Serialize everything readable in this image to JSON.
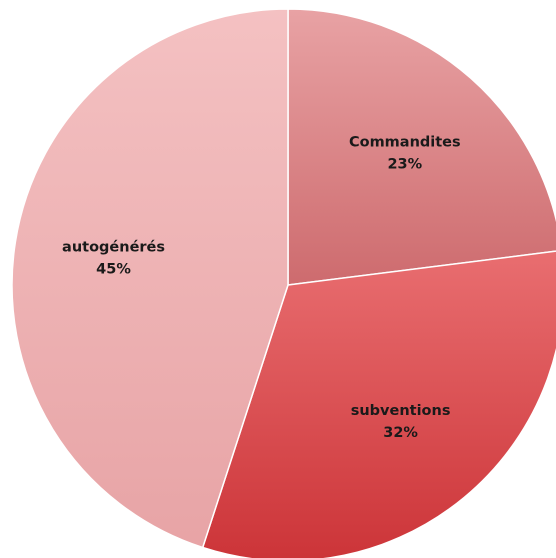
{
  "chart_data": {
    "type": "pie",
    "start_angle_deg": 0,
    "direction": "clockwise",
    "slices": [
      {
        "label": "Commandites",
        "percent_label": "23%",
        "value": 23,
        "colors": {
          "light": "#e8a2a4",
          "dark": "#b33438"
        }
      },
      {
        "label": "subventions",
        "percent_label": "32%",
        "value": 32,
        "colors": {
          "light": "#ff9b9c",
          "dark": "#cc3438"
        }
      },
      {
        "label": "autogénérés",
        "percent_label": "45%",
        "value": 45,
        "colors": {
          "light": "#f4c1c2",
          "dark": "#e7a3a5"
        }
      }
    ]
  }
}
